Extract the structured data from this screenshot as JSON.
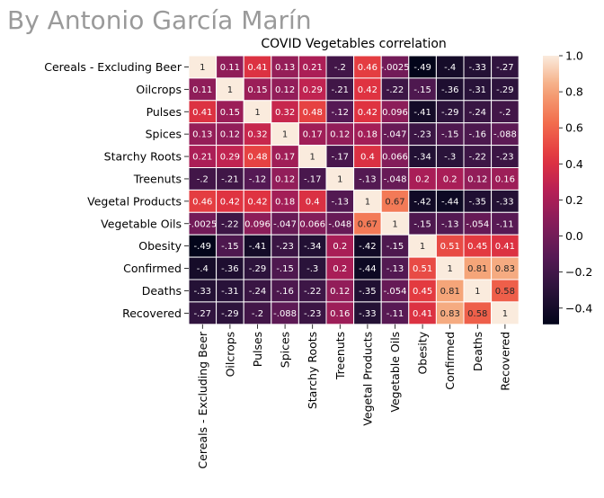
{
  "author": "By Antonio García Marín",
  "chart_data": {
    "type": "heatmap",
    "title": "COVID Vegetables correlation",
    "xlabel": "",
    "ylabel": "",
    "labels": [
      "Cereals - Excluding Beer",
      "Oilcrops",
      "Pulses",
      "Spices",
      "Starchy Roots",
      "Treenuts",
      "Vegetal Products",
      "Vegetable Oils",
      "Obesity",
      "Confirmed",
      "Deaths",
      "Recovered"
    ],
    "values": [
      [
        1,
        0.11,
        0.41,
        0.13,
        0.21,
        -0.2,
        0.46,
        -0.0025,
        -0.49,
        -0.4,
        -0.33,
        -0.27
      ],
      [
        0.11,
        1,
        0.15,
        0.12,
        0.29,
        -0.21,
        0.42,
        -0.22,
        -0.15,
        -0.36,
        -0.31,
        -0.29
      ],
      [
        0.41,
        0.15,
        1,
        0.32,
        0.48,
        -0.12,
        0.42,
        0.096,
        -0.41,
        -0.29,
        -0.24,
        -0.2
      ],
      [
        0.13,
        0.12,
        0.32,
        1,
        0.17,
        0.12,
        0.18,
        -0.047,
        -0.23,
        -0.15,
        -0.16,
        -0.088
      ],
      [
        0.21,
        0.29,
        0.48,
        0.17,
        1,
        -0.17,
        0.4,
        0.066,
        -0.34,
        -0.3,
        -0.22,
        -0.23
      ],
      [
        -0.2,
        -0.21,
        -0.12,
        0.12,
        -0.17,
        1,
        -0.13,
        -0.048,
        0.2,
        0.2,
        0.12,
        0.16
      ],
      [
        0.46,
        0.42,
        0.42,
        0.18,
        0.4,
        -0.13,
        1,
        0.67,
        -0.42,
        -0.44,
        -0.35,
        -0.33
      ],
      [
        -0.0025,
        -0.22,
        0.096,
        -0.047,
        0.066,
        -0.048,
        0.67,
        1,
        -0.15,
        -0.13,
        -0.054,
        -0.11
      ],
      [
        -0.49,
        -0.15,
        -0.41,
        -0.23,
        -0.34,
        0.2,
        -0.42,
        -0.15,
        1,
        0.51,
        0.45,
        0.41
      ],
      [
        -0.4,
        -0.36,
        -0.29,
        -0.15,
        -0.3,
        0.2,
        -0.44,
        -0.13,
        0.51,
        1,
        0.81,
        0.83
      ],
      [
        -0.33,
        -0.31,
        -0.24,
        -0.16,
        -0.22,
        0.12,
        -0.35,
        -0.054,
        0.45,
        0.81,
        1,
        0.58
      ],
      [
        -0.27,
        -0.29,
        -0.2,
        -0.088,
        -0.23,
        0.16,
        -0.33,
        -0.11,
        0.41,
        0.83,
        0.58,
        1
      ]
    ],
    "value_range": [
      -0.49,
      1
    ],
    "colorbar_ticks": [
      -0.4,
      -0.2,
      0.0,
      0.2,
      0.4,
      0.6,
      0.8,
      1.0
    ],
    "colorbar_tick_labels": [
      "−0.4",
      "−0.2",
      "0.0",
      "0.2",
      "0.4",
      "0.6",
      "0.8",
      "1.0"
    ],
    "colormap": "rocket",
    "annotations": true,
    "cell_separator_color": "#ffffff"
  }
}
